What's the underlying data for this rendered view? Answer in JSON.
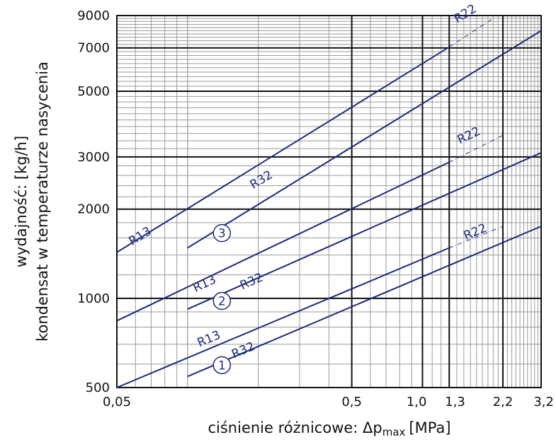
{
  "chart_data": {
    "type": "line",
    "xscale": "log",
    "yscale": "log",
    "xlim": [
      0.05,
      3.2
    ],
    "ylim": [
      500,
      9000
    ],
    "xlabel": "ciśnienie różnicowe: Δp",
    "xlabel_sub": "max",
    "xlabel_unit": "[MPa]",
    "ylabel_line1": "wydajność: [kg/h]",
    "ylabel_line2": "kondensat w temperaturze nasycenia",
    "x_ticks": [
      {
        "value": 0.05,
        "label": "0,05"
      },
      {
        "value": 0.5,
        "label": "0,5"
      },
      {
        "value": 1.0,
        "label": "1,0"
      },
      {
        "value": 1.3,
        "label": "1,3"
      },
      {
        "value": 2.2,
        "label": "2,2"
      },
      {
        "value": 3.2,
        "label": "3,2"
      }
    ],
    "y_ticks": [
      {
        "value": 500,
        "label": "500"
      },
      {
        "value": 1000,
        "label": "1000"
      },
      {
        "value": 2000,
        "label": "2000"
      },
      {
        "value": 3000,
        "label": "3000"
      },
      {
        "value": 5000,
        "label": "5000"
      },
      {
        "value": 7000,
        "label": "7000"
      },
      {
        "value": 9000,
        "label": "9000"
      }
    ],
    "major_x_lines": [
      0.5,
      1.0,
      1.3,
      2.2
    ],
    "major_y_lines": [
      1000,
      2000,
      3000,
      5000,
      7000
    ],
    "series": [
      {
        "name": "R13",
        "group": "3",
        "points": [
          [
            0.05,
            1430
          ],
          [
            1.3,
            7050
          ]
        ],
        "dashed_to": [
          2.0,
          8800
        ]
      },
      {
        "name": "R32",
        "group": "3",
        "points": [
          [
            0.1,
            1480
          ],
          [
            3.2,
            8000
          ]
        ]
      },
      {
        "name": "R13",
        "group": "2",
        "points": [
          [
            0.05,
            840
          ],
          [
            1.3,
            2880
          ]
        ],
        "dashed_to": [
          2.2,
          3550
        ]
      },
      {
        "name": "R32",
        "group": "2",
        "points": [
          [
            0.1,
            920
          ],
          [
            3.2,
            3100
          ]
        ]
      },
      {
        "name": "R13",
        "group": "1",
        "points": [
          [
            0.05,
            500
          ],
          [
            1.3,
            1480
          ]
        ],
        "dashed_to": [
          2.2,
          1750
        ]
      },
      {
        "name": "R32",
        "group": "1",
        "points": [
          [
            0.1,
            545
          ],
          [
            3.2,
            1750
          ]
        ]
      }
    ],
    "labels": [
      {
        "text": "R13",
        "x": 0.064,
        "y": 1580,
        "angle_series": 0
      },
      {
        "text": "R32",
        "x": 0.21,
        "y": 2450,
        "angle_series": 1
      },
      {
        "text": "R13",
        "x": 0.12,
        "y": 1090,
        "angle_series": 2
      },
      {
        "text": "R32",
        "x": 0.19,
        "y": 1110,
        "angle_series": 3
      },
      {
        "text": "R13",
        "x": 0.125,
        "y": 710,
        "angle_series": 4
      },
      {
        "text": "R32",
        "x": 0.175,
        "y": 650,
        "angle_series": 5
      },
      {
        "text": "R22",
        "x": 1.55,
        "y": 8900,
        "angle_series": 0
      },
      {
        "text": "R22",
        "x": 1.6,
        "y": 3450,
        "angle_series": 2
      },
      {
        "text": "R22",
        "x": 1.7,
        "y": 1630,
        "angle_series": 4
      }
    ],
    "circle_labels": [
      {
        "text": "3",
        "x": 0.14,
        "y": 1660
      },
      {
        "text": "2",
        "x": 0.14,
        "y": 980
      },
      {
        "text": "1",
        "x": 0.14,
        "y": 595
      }
    ],
    "colors": {
      "series": "#1c2a7a",
      "grid_major": "#111111",
      "grid_minor": "#9a9a9a"
    }
  }
}
